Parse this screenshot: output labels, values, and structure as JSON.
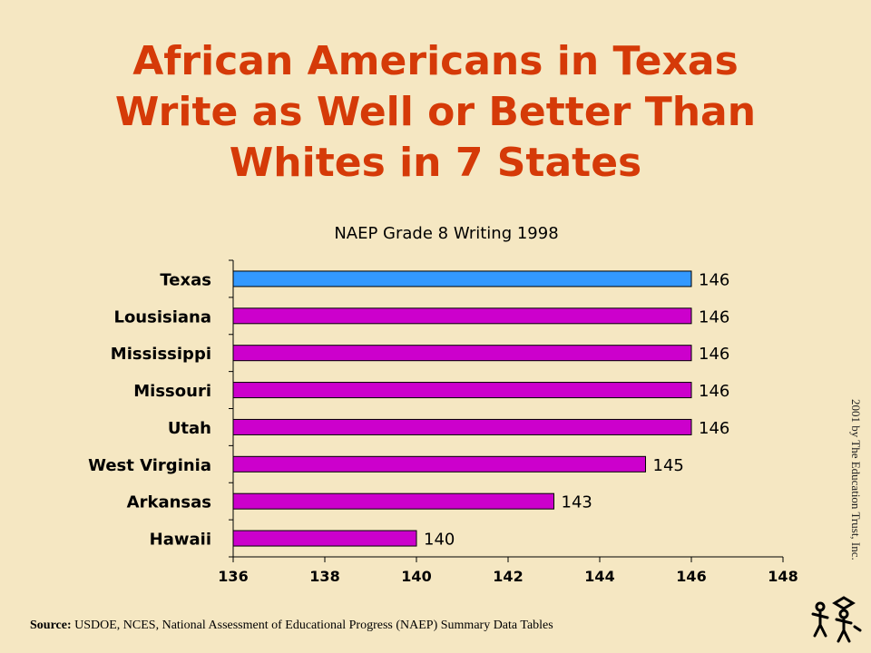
{
  "slide": {
    "title_lines": [
      "African Americans in Texas",
      "Write as Well or Better Than",
      "Whites in 7 States"
    ],
    "copyright": "2001 by The Education Trust, Inc.",
    "source_label": "Source:",
    "source_text": "USDOE, NCES, National Assessment of Educational Progress (NAEP) Summary Data Tables"
  },
  "colors": {
    "title": "#d53a08",
    "background": "#f5e7c2",
    "highlight_bar": "#3399ff",
    "bar": "#cc00cc"
  },
  "chart_data": {
    "type": "bar",
    "orientation": "horizontal",
    "title": "NAEP Grade 8 Writing 1998",
    "categories": [
      "Texas",
      "Lousisiana",
      "Mississippi",
      "Missouri",
      "Utah",
      "West Virginia",
      "Arkansas",
      "Hawaii"
    ],
    "values": [
      146,
      146,
      146,
      146,
      146,
      145,
      143,
      140
    ],
    "data_labels": [
      "146",
      "146",
      "146",
      "146",
      "146",
      "145",
      "143",
      "140"
    ],
    "highlight": "Texas",
    "xlim": [
      136,
      148
    ],
    "x_ticks": [
      "136",
      "138",
      "140",
      "142",
      "144",
      "146",
      "148"
    ],
    "xlabel": "",
    "ylabel": "",
    "grid": false
  }
}
